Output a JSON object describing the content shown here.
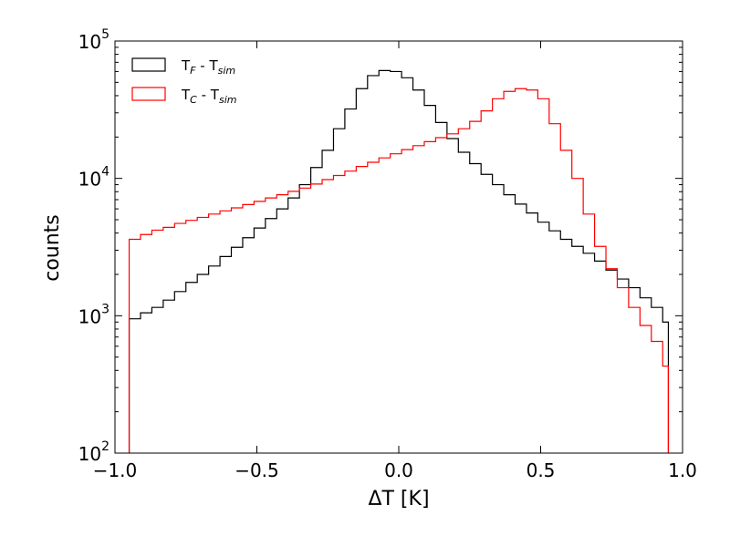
{
  "chart_data": {
    "type": "histogram",
    "xlabel": "ΔT [K]",
    "ylabel": "counts",
    "xlim": [
      -1.0,
      1.0
    ],
    "ylim": [
      100,
      100000
    ],
    "yscale": "log",
    "x_ticks": [
      "−1.0",
      "−0.5",
      "0.0",
      "0.5",
      "1.0"
    ],
    "x_tick_values": [
      -1.0,
      -0.5,
      0.0,
      0.5,
      1.0
    ],
    "y_ticks": [
      {
        "value": 100,
        "base": "10",
        "exp": "2"
      },
      {
        "value": 1000,
        "base": "10",
        "exp": "3"
      },
      {
        "value": 10000,
        "base": "10",
        "exp": "4"
      },
      {
        "value": 100000,
        "base": "10",
        "exp": "5"
      }
    ],
    "bin_edges": [
      -0.95,
      -0.91,
      -0.87,
      -0.83,
      -0.79,
      -0.75,
      -0.71,
      -0.67,
      -0.63,
      -0.59,
      -0.55,
      -0.51,
      -0.47,
      -0.43,
      -0.39,
      -0.35,
      -0.31,
      -0.27,
      -0.23,
      -0.19,
      -0.15,
      -0.11,
      -0.07,
      -0.03,
      0.01,
      0.05,
      0.09,
      0.13,
      0.17,
      0.21,
      0.25,
      0.29,
      0.33,
      0.37,
      0.41,
      0.45,
      0.49,
      0.53,
      0.57,
      0.61,
      0.65,
      0.69,
      0.73,
      0.77,
      0.81,
      0.85,
      0.89,
      0.93,
      0.95
    ],
    "series": [
      {
        "name_main": "T",
        "name_sub1": "F",
        "name_mid": " - T",
        "name_sub2": "sim",
        "color": "#000000",
        "values": [
          950,
          1050,
          1150,
          1300,
          1500,
          1750,
          2000,
          2300,
          2700,
          3150,
          3700,
          4350,
          5100,
          6000,
          7200,
          9000,
          12000,
          16000,
          23000,
          32000,
          45000,
          56000,
          61000,
          60000,
          54000,
          44000,
          34000,
          25500,
          19500,
          15500,
          12800,
          10700,
          9000,
          7600,
          6500,
          5600,
          4800,
          4150,
          3600,
          3200,
          2850,
          2500,
          2150,
          1850,
          1600,
          1350,
          1150,
          900
        ]
      },
      {
        "name_main": "T",
        "name_sub1": "C",
        "name_mid": " - T",
        "name_sub2": "sim",
        "color": "#ff0000",
        "values": [
          3600,
          3900,
          4200,
          4400,
          4700,
          4950,
          5200,
          5500,
          5800,
          6100,
          6450,
          6800,
          7200,
          7600,
          8050,
          8500,
          9100,
          9800,
          10500,
          11300,
          12200,
          13100,
          14100,
          15100,
          16200,
          17300,
          18500,
          19800,
          21100,
          23000,
          26000,
          31000,
          38000,
          43000,
          45000,
          44000,
          38000,
          25000,
          16000,
          10000,
          5500,
          3200,
          2200,
          1600,
          1150,
          850,
          650,
          430
        ]
      }
    ]
  }
}
